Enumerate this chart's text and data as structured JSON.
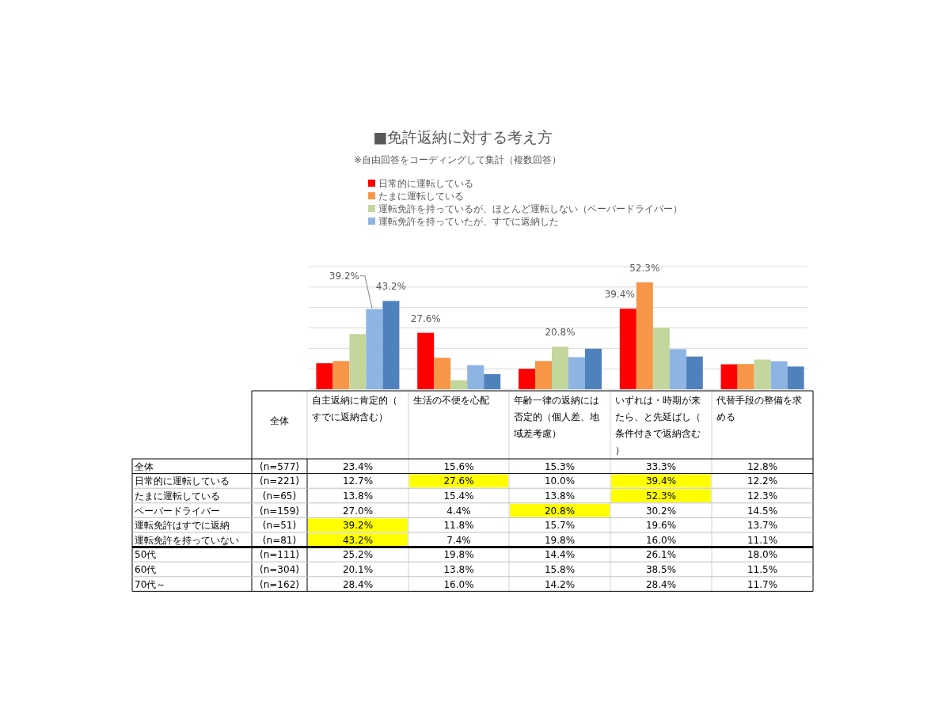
{
  "chart_data": {
    "type": "bar",
    "title": "■免許返納に対する考え方",
    "subtitle": "※自由回答をコーディングして集計（複数回答）",
    "categories": [
      "自主返納に肯定的（すでに返納含む）",
      "生活の不便を心配",
      "年齢一律の返納には否定的（個人差、地域差考慮）",
      "いずれは・時期が来たら、と先延ばし（条件付きで返納含む）",
      "代替手段の整備を求める"
    ],
    "series": [
      {
        "name": "日常的に運転している",
        "color": "#ff0000",
        "values": [
          12.7,
          27.6,
          10.0,
          39.4,
          12.2
        ],
        "value_labels": [
          null,
          "27.6%",
          null,
          "39.4%",
          null
        ]
      },
      {
        "name": "たまに運転している",
        "color": "#f79646",
        "values": [
          13.8,
          15.4,
          13.8,
          52.3,
          12.3
        ],
        "value_labels": [
          null,
          null,
          null,
          "52.3%",
          null
        ]
      },
      {
        "name": "運転免許を持っているが、ほとんど運転しない（ペーパードライバー）",
        "color": "#c3d69b",
        "values": [
          27.0,
          4.4,
          20.8,
          30.2,
          14.5
        ],
        "value_labels": [
          null,
          null,
          "20.8%",
          null,
          null
        ]
      },
      {
        "name": "運転免許を持っていたが、すでに返納した",
        "color": "#8eb4e3",
        "values": [
          39.2,
          11.8,
          15.7,
          19.6,
          13.7
        ],
        "value_labels": [
          "39.2%",
          null,
          null,
          null,
          null
        ]
      },
      {
        "color": "#4f81bd",
        "values": [
          43.2,
          7.4,
          19.8,
          16.0,
          11.1
        ],
        "value_labels": [
          "43.2%",
          null,
          null,
          null,
          null
        ]
      }
    ],
    "ylim": [
      0,
      60
    ],
    "yticks": [
      {
        "value": 0,
        "label": null
      },
      {
        "value": 10,
        "label": null
      },
      {
        "value": 20,
        "label": null
      },
      {
        "value": 30,
        "label": null
      },
      {
        "value": 40,
        "label": null
      },
      {
        "value": 50,
        "label": null
      },
      {
        "value": 60,
        "label": null
      }
    ],
    "grid": "y",
    "legend": "top",
    "annotations": [
      "全体",
      "全体",
      "(n=577)",
      "日常的に運転している",
      "(n=221)",
      "たまに運転している",
      "(n=65)",
      "ペーパードライバー",
      "(n=159)",
      "運転免許はすでに返納",
      "(n=51)",
      "運転免許を持っていない",
      "(n=81)",
      "50代",
      "(n=111)",
      "60代",
      "(n=304)",
      "70代～",
      "(n=162)",
      "23.4%",
      "15.6%",
      "15.3%",
      "33.3%",
      "12.8%",
      "12.7%",
      "27.6%",
      "10.0%",
      "39.4%",
      "12.2%",
      "13.8%",
      "15.4%",
      "13.8%",
      "52.3%",
      "12.3%",
      "27.0%",
      "4.4%",
      "20.8%",
      "30.2%",
      "14.5%",
      "39.2%",
      "11.8%",
      "15.7%",
      "19.6%",
      "13.7%",
      "43.2%",
      "7.4%",
      "19.8%",
      "16.0%",
      "11.1%",
      "25.2%",
      "19.8%",
      "14.4%",
      "26.1%",
      "18.0%",
      "20.1%",
      "13.8%",
      "15.8%",
      "38.5%",
      "11.5%",
      "28.4%",
      "16.0%",
      "14.2%",
      "28.4%",
      "11.7%"
    ]
  }
}
